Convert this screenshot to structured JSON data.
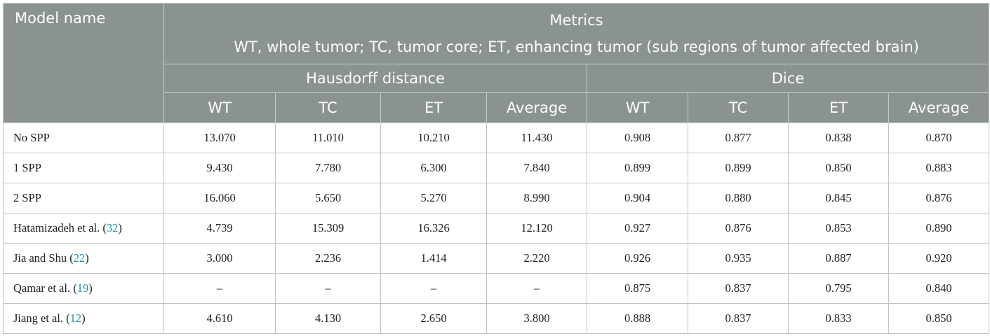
{
  "table": {
    "header": {
      "model_col": "Model name",
      "metrics": "Metrics",
      "note": "WT, whole tumor; TC, tumor core; ET, enhancing tumor (sub regions of tumor affected brain)",
      "groups": [
        "Hausdorff distance",
        "Dice"
      ],
      "columns": [
        "WT",
        "TC",
        "ET",
        "Average",
        "WT",
        "TC",
        "ET",
        "Average"
      ]
    },
    "rows": [
      {
        "model": [
          "No SPP"
        ],
        "cells": [
          "13.070",
          "11.010",
          "10.210",
          "11.430",
          "0.908",
          "0.877",
          "0.838",
          "0.870"
        ]
      },
      {
        "model": [
          "1 SPP"
        ],
        "cells": [
          "9.430",
          "7.780",
          "6.300",
          "7.840",
          "0.899",
          "0.899",
          "0.850",
          "0.883"
        ]
      },
      {
        "model": [
          "2 SPP"
        ],
        "cells": [
          "16.060",
          "5.650",
          "5.270",
          "8.990",
          "0.904",
          "0.880",
          "0.845",
          "0.876"
        ]
      },
      {
        "model": [
          "Hatamizadeh et al. (",
          "32",
          ")"
        ],
        "cells": [
          "4.739",
          "15.309",
          "16.326",
          "12.120",
          "0.927",
          "0.876",
          "0.853",
          "0.890"
        ]
      },
      {
        "model": [
          "Jia and Shu (",
          "22",
          ")"
        ],
        "cells": [
          "3.000",
          "2.236",
          "1.414",
          "2.220",
          "0.926",
          "0.935",
          "0.887",
          "0.920"
        ]
      },
      {
        "model": [
          "Qamar et al. (",
          "19",
          ")"
        ],
        "cells": [
          "–",
          "–",
          "–",
          "–",
          "0.875",
          "0.837",
          "0.795",
          "0.840"
        ]
      },
      {
        "model": [
          "Jiang et al. (",
          "12",
          ")"
        ],
        "cells": [
          "4.610",
          "4.130",
          "2.650",
          "3.800",
          "0.888",
          "0.837",
          "0.833",
          "0.850"
        ]
      }
    ]
  }
}
